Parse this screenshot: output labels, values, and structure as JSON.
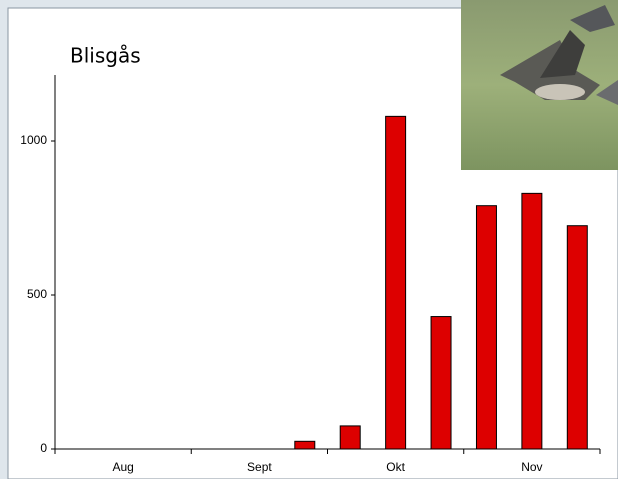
{
  "chart_data": {
    "type": "bar",
    "title": "Blisgås",
    "categories": [
      null,
      null,
      null,
      null,
      null,
      null,
      null,
      null,
      null,
      null,
      null,
      null
    ],
    "groups": [
      "Aug",
      "Sept",
      "Okt",
      "Nov"
    ],
    "values": [
      null,
      null,
      null,
      null,
      null,
      25,
      75,
      1080,
      430,
      790,
      830,
      725
    ],
    "color": "#dd0000",
    "ylim": [
      0,
      1200
    ],
    "yticks": [
      0,
      500,
      1000
    ],
    "grid": false
  }
}
